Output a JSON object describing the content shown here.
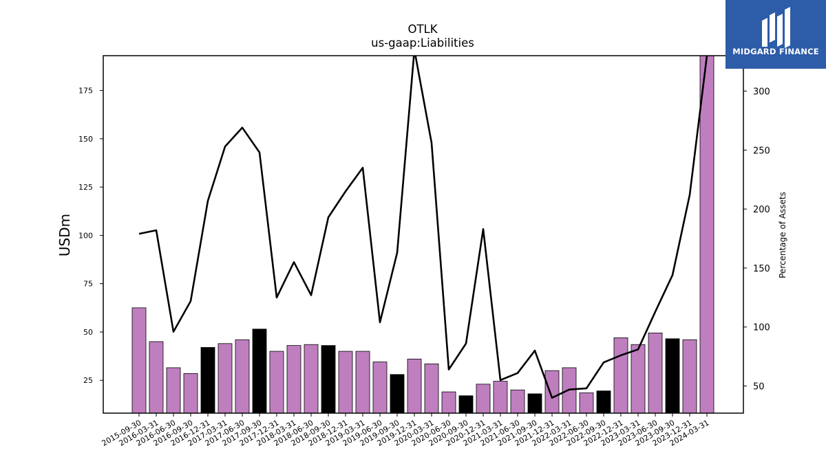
{
  "logo": {
    "text": "MIDGARD FINANCE",
    "icon": "midgard-bars-logo-icon",
    "background": "#2d5ca8"
  },
  "chart_data": {
    "type": "bar",
    "title": "OTLK",
    "subtitle": "us-gaap:Liabilities",
    "ylabel": "USDm",
    "y2label": "Percentage of Assets",
    "ylim": [
      8,
      193
    ],
    "y2lim": [
      27,
      330
    ],
    "yticks": [
      25,
      50,
      75,
      100,
      125,
      150,
      175
    ],
    "y2ticks": [
      50,
      100,
      150,
      200,
      250,
      300
    ],
    "categories": [
      "2015-09-30",
      "2016-03-31",
      "2016-06-30",
      "2016-09-30",
      "2016-12-31",
      "2017-03-31",
      "2017-06-30",
      "2017-09-30",
      "2017-12-31",
      "2018-03-31",
      "2018-06-30",
      "2018-09-30",
      "2018-12-31",
      "2019-03-31",
      "2019-06-30",
      "2019-09-30",
      "2019-12-31",
      "2020-03-31",
      "2020-06-30",
      "2020-09-30",
      "2020-12-31",
      "2021-03-31",
      "2021-06-30",
      "2021-09-30",
      "2021-12-31",
      "2022-03-31",
      "2022-06-30",
      "2022-09-30",
      "2022-12-31",
      "2023-03-31",
      "2023-06-30",
      "2023-09-30",
      "2023-12-31",
      "2024-03-31"
    ],
    "series": [
      {
        "kind": "bar",
        "values": [
          62.5,
          45,
          31.5,
          28.5,
          42,
          44,
          46,
          51.5,
          40,
          43,
          43.5,
          43,
          40,
          40,
          34.5,
          28,
          36,
          33.5,
          19,
          17,
          23,
          24.5,
          20,
          18,
          30,
          31.5,
          18.5,
          19.5,
          47,
          43.5,
          49.5,
          46.5,
          46,
          193
        ],
        "highlight_color": "#000000",
        "color": "#bf7fbf",
        "highlighted": [
          "2016-12-31",
          "2017-09-30",
          "2018-09-30",
          "2019-09-30",
          "2020-09-30",
          "2021-09-30",
          "2022-09-30",
          "2023-09-30"
        ]
      },
      {
        "kind": "line",
        "axis": "right",
        "color": "#000000",
        "values": [
          179,
          182,
          96,
          122,
          207,
          253,
          269,
          248,
          125,
          155,
          127,
          193,
          215,
          235,
          104,
          163,
          335,
          256,
          64,
          86,
          183,
          55,
          61,
          80,
          40,
          47,
          48,
          70,
          76,
          81,
          113,
          144,
          212,
          330
        ]
      }
    ]
  }
}
